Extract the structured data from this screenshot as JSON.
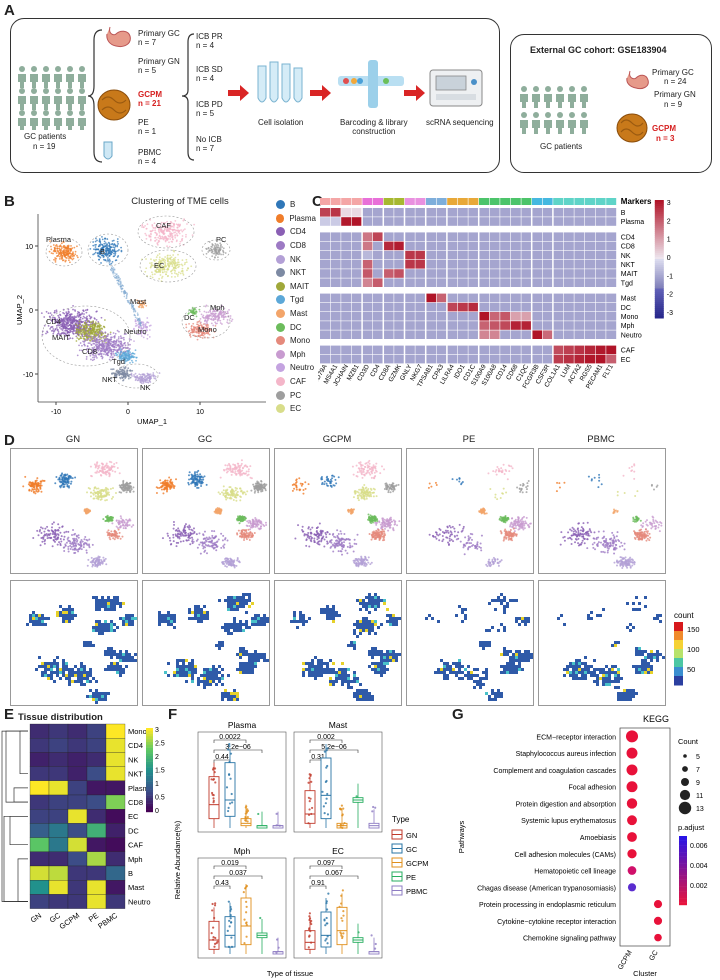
{
  "panels": {
    "a": "A",
    "b": "B",
    "c": "C",
    "d": "D",
    "e": "E",
    "f": "F",
    "g": "G"
  },
  "panelA": {
    "gc_patients_label": "GC patients",
    "gc_patients_n": "n = 19",
    "groups": [
      {
        "name": "Primary GC",
        "n": "n = 7"
      },
      {
        "name": "Primary GN",
        "n": "n = 5"
      },
      {
        "name": "GCPM",
        "n": "n = 21"
      },
      {
        "name": "PE",
        "n": "n = 1"
      },
      {
        "name": "PBMC",
        "n": "n = 4"
      }
    ],
    "icb": [
      {
        "name": "ICB PR",
        "n": "n = 4"
      },
      {
        "name": "ICB SD",
        "n": "n = 4"
      },
      {
        "name": "ICB PD",
        "n": "n = 5"
      },
      {
        "name": "No ICB",
        "n": "n = 7"
      }
    ],
    "steps": [
      "Cell isolation",
      "Barcoding & library\nconstruction",
      "scRNA sequencing"
    ],
    "external_title": "External GC cohort: GSE183904",
    "external_groups": [
      {
        "name": "Primary GC",
        "n": "n = 24"
      },
      {
        "name": "Primary GN",
        "n": "n = 9"
      },
      {
        "name": "GCPM",
        "n": "n = 3"
      }
    ],
    "external_patients": "GC patients"
  },
  "panelB": {
    "title": "Clustering of TME cells",
    "xlabel": "UMAP_1",
    "ylabel": "UMAP_2",
    "xticks": [
      "-10",
      "0",
      "10"
    ],
    "yticks": [
      "10",
      "0",
      "-10"
    ],
    "cluster_labels": [
      "Plasma",
      "B",
      "CAF",
      "PC",
      "EC",
      "Mast",
      "Mph",
      "DC",
      "Mono",
      "CD4",
      "MAIT",
      "CD8",
      "Neutro",
      "Tgd",
      "NKT",
      "NK"
    ],
    "legend": [
      {
        "name": "B",
        "color": "#2f77b8"
      },
      {
        "name": "Plasma",
        "color": "#f07d2a"
      },
      {
        "name": "CD4",
        "color": "#8a5fb4"
      },
      {
        "name": "CD8",
        "color": "#9d7ac4"
      },
      {
        "name": "NK",
        "color": "#b3a0d6"
      },
      {
        "name": "NKT",
        "color": "#7d8aa3"
      },
      {
        "name": "MAIT",
        "color": "#a0a83a"
      },
      {
        "name": "Tgd",
        "color": "#5ca8d8"
      },
      {
        "name": "Mast",
        "color": "#f3a56a"
      },
      {
        "name": "DC",
        "color": "#6cbc5c"
      },
      {
        "name": "Mono",
        "color": "#e58a7c"
      },
      {
        "name": "Mph",
        "color": "#c89bd0"
      },
      {
        "name": "Neutro",
        "color": "#c4a3e0"
      },
      {
        "name": "CAF",
        "color": "#f4b6c9"
      },
      {
        "name": "PC",
        "color": "#9e9e9e"
      },
      {
        "name": "EC",
        "color": "#d8dd8a"
      }
    ]
  },
  "panelC": {
    "markers_label": "Markers",
    "genes": [
      "CD79A",
      "MS4A1",
      "JCHAIN",
      "MZB1",
      "CD3D",
      "CD4",
      "CD8A",
      "GZMK",
      "GNLY",
      "NKG7",
      "TPSAB1",
      "CPA3",
      "LILRA4",
      "IDO1",
      "CD1C",
      "S100A9",
      "S100A8",
      "CD14",
      "CD68",
      "C1QC",
      "FCGR3B",
      "CSF3R",
      "COL1A1",
      "LUM",
      "ACTA2",
      "RGS5",
      "PECAM1",
      "FLT1"
    ],
    "rows": [
      "B",
      "Plasma",
      "CD4",
      "CD8",
      "NK",
      "NKT",
      "MAIT",
      "Tgd",
      "Mast",
      "DC",
      "Mono",
      "Mph",
      "Neutro",
      "CAF",
      "EC"
    ],
    "colorbar_ticks": [
      "3",
      "2",
      "1",
      "0",
      "-1",
      "-2",
      "-3"
    ],
    "marker_group_colors": [
      "#f4a6a6",
      "#e870d8",
      "#a7b830",
      "#e991e0",
      "#7eaedb",
      "#e8a838",
      "#4cc46a",
      "#45b8e0",
      "#5fd4c8"
    ]
  },
  "panelD": {
    "titles": [
      "GN",
      "GC",
      "GCPM",
      "PE",
      "PBMC"
    ],
    "count_label": "count",
    "count_ticks": [
      "150",
      "100",
      "50"
    ]
  },
  "panelE": {
    "title": "Tissue distribution",
    "cols": [
      "GN",
      "GC",
      "GCPM",
      "PE",
      "PBMC"
    ],
    "rows": [
      "Mono",
      "CD4",
      "NK",
      "NKT",
      "Plasma",
      "CD8",
      "EC",
      "DC",
      "CAF",
      "Mph",
      "B",
      "Mast",
      "Neutro"
    ],
    "values": [
      [
        0.4,
        0.5,
        0.4,
        0.6,
        3.0
      ],
      [
        0.5,
        0.6,
        0.5,
        0.6,
        2.9
      ],
      [
        0.3,
        0.4,
        0.3,
        0.4,
        2.9
      ],
      [
        0.5,
        0.5,
        0.3,
        0.7,
        2.9
      ],
      [
        3.0,
        2.9,
        0.6,
        0.2,
        0.2
      ],
      [
        0.5,
        0.6,
        0.6,
        0.7,
        2.4
      ],
      [
        0.6,
        0.6,
        2.9,
        0.4,
        0.1
      ],
      [
        0.9,
        1.2,
        0.7,
        1.9,
        0.3
      ],
      [
        2.2,
        1.2,
        2.8,
        0.2,
        0.1
      ],
      [
        0.4,
        0.4,
        0.7,
        2.6,
        0.4
      ],
      [
        2.8,
        2.7,
        0.5,
        0.5,
        1.0
      ],
      [
        1.5,
        2.9,
        0.5,
        2.9,
        0.2
      ],
      [
        0.6,
        0.5,
        0.5,
        2.9,
        0.5
      ]
    ],
    "colorbar_ticks": [
      "3",
      "2.5",
      "2",
      "1.5",
      "1",
      "0.5",
      "0"
    ]
  },
  "panelF": {
    "ylabel": "Relative Abundance(%)",
    "xlabel": "Type of tissue",
    "legend_title": "Type",
    "types": [
      {
        "name": "GN",
        "color": "#c0392b"
      },
      {
        "name": "GC",
        "color": "#2874a6"
      },
      {
        "name": "GCPM",
        "color": "#e08f1b"
      },
      {
        "name": "PE",
        "color": "#27ae60"
      },
      {
        "name": "PBMC",
        "color": "#8e7cc3"
      }
    ],
    "subplots": [
      {
        "title": "Plasma",
        "p": [
          "0.0022",
          "3.2e−06",
          "0.44"
        ]
      },
      {
        "title": "Mast",
        "p": [
          "0.002",
          "5.2e−06",
          "0.31"
        ]
      },
      {
        "title": "Mph",
        "p": [
          "0.019",
          "0.037",
          "0.43"
        ]
      },
      {
        "title": "EC",
        "p": [
          "0.097",
          "0.067",
          "0.91"
        ]
      }
    ]
  },
  "panelG": {
    "title": "KEGG",
    "ylabel": "Pathways",
    "xlabel": "Cluster",
    "clusters": [
      "GCPM",
      "GC"
    ],
    "pathways": [
      "ECM−receptor interaction",
      "Staphylococcus aureus infection",
      "Complement and coagulation cascades",
      "Focal adhesion",
      "Protein digestion and absorption",
      "Systemic lupus erythematosus",
      "Amoebiasis",
      "Cell adhesion molecules (CAMs)",
      "Hematopoietic cell lineage",
      "Chagas disease (American trypanosomiasis)",
      "Protein processing in endoplasmic reticulum",
      "Cytokine−cytokine receptor interaction",
      "Chemokine signaling pathway"
    ],
    "count_title": "Count",
    "count_ticks": [
      "5",
      "7",
      "9",
      "11",
      "13"
    ],
    "padj_title": "p.adjust",
    "padj_ticks": [
      "0.006",
      "0.004",
      "0.002"
    ]
  }
}
